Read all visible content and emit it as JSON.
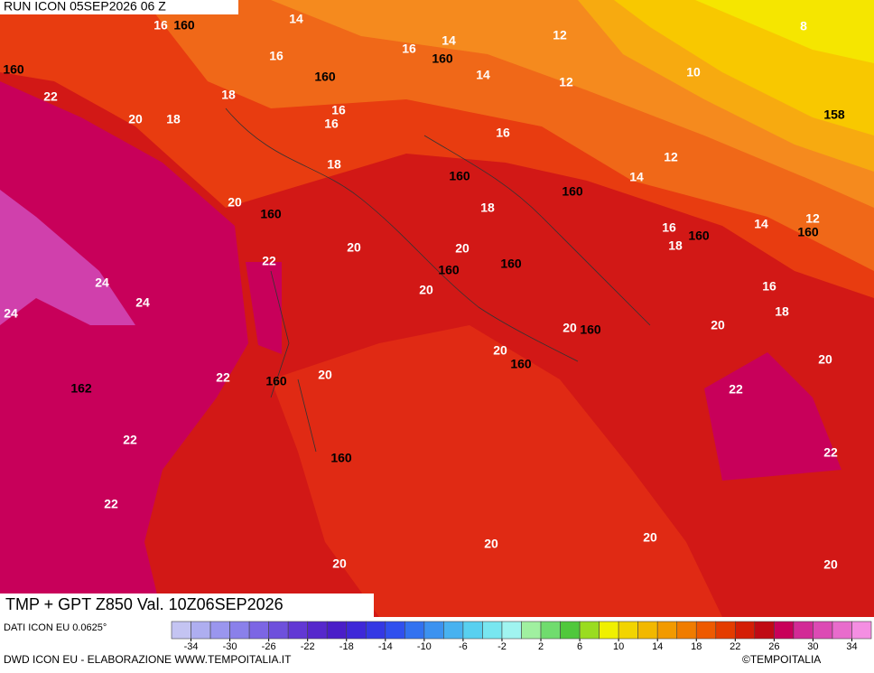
{
  "header": {
    "run": "RUN ICON 05SEP2026 06 Z"
  },
  "title": "TMP + GPT Z850 Val. 10Z06SEP2026",
  "source": "DATI ICON EU 0.0625°",
  "credit": "DWD ICON EU - ELABORAZIONE WWW.TEMPOITALIA.IT",
  "copyright": "©TEMPOITALIA",
  "colorbar": {
    "lim": [
      -36,
      36
    ],
    "ticks": [
      -34,
      -30,
      -26,
      -22,
      -18,
      -14,
      -10,
      -6,
      -2,
      2,
      6,
      10,
      14,
      18,
      22,
      26,
      30,
      34
    ],
    "colors": [
      "#c4c4f2",
      "#aeaef0",
      "#9a96ee",
      "#8a80ea",
      "#7c66e4",
      "#6e50dc",
      "#6238d4",
      "#5628cc",
      "#4a1ec8",
      "#3e28d8",
      "#3438e4",
      "#3050ee",
      "#3272f0",
      "#3c92f0",
      "#48b2f0",
      "#58d0f0",
      "#78e6f0",
      "#a0f4f0",
      "#a0f0a0",
      "#70dc6e",
      "#50c83c",
      "#9adc20",
      "#f0f000",
      "#f2d400",
      "#f2b800",
      "#f29a00",
      "#f07c00",
      "#ee5a00",
      "#e43c00",
      "#d41e06",
      "#c00a14",
      "#c8005a",
      "#d22a96",
      "#dc4ab4",
      "#e86ccc",
      "#f48ee2"
    ]
  },
  "map": {
    "temperature_labels": [
      "16",
      "14",
      "16",
      "16",
      "14",
      "12",
      "8",
      "22",
      "20",
      "18",
      "18",
      "16",
      "16",
      "14",
      "12",
      "10",
      "16",
      "12",
      "18",
      "14",
      "20",
      "18",
      "16",
      "14",
      "12",
      "18",
      "20",
      "20",
      "22",
      "24",
      "24",
      "24",
      "20",
      "16",
      "18",
      "20",
      "20",
      "20",
      "20",
      "22",
      "20",
      "22",
      "22",
      "22",
      "22",
      "20",
      "20",
      "20",
      "20"
    ],
    "height_labels": [
      "160",
      "160",
      "160",
      "160",
      "158",
      "160",
      "160",
      "160",
      "160",
      "160",
      "160",
      "160",
      "160",
      "160",
      "160",
      "162",
      "160"
    ]
  }
}
